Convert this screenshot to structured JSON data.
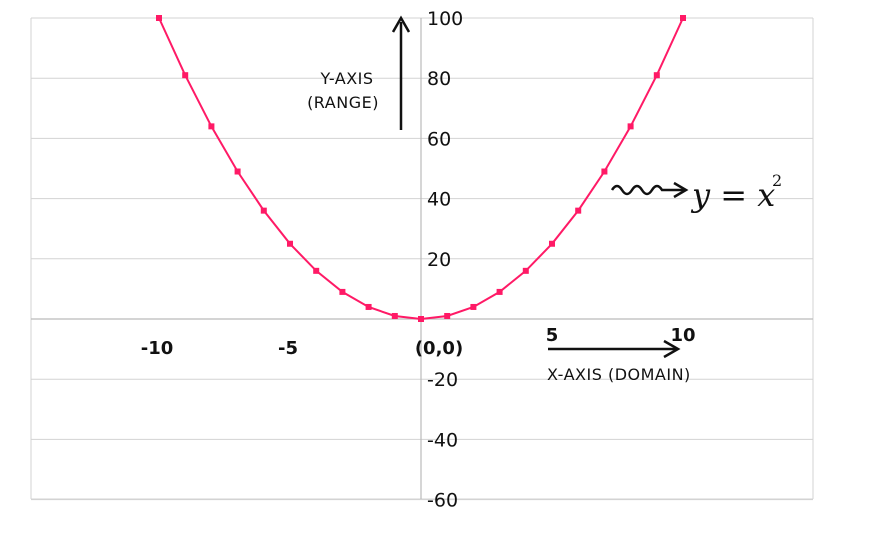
{
  "chart_data": {
    "type": "line",
    "series": [
      {
        "x": [
          -10,
          -9,
          -8,
          -7,
          -6,
          -5,
          -4,
          -3,
          -2,
          -1,
          0,
          1,
          2,
          3,
          4,
          5,
          6,
          7,
          8,
          9,
          10
        ],
        "y": [
          100,
          81,
          64,
          49,
          36,
          25,
          16,
          9,
          4,
          1,
          0,
          1,
          4,
          9,
          16,
          25,
          36,
          49,
          64,
          81,
          100
        ]
      }
    ],
    "x_tick_labels": [
      {
        "x": -10,
        "text": "-10"
      },
      {
        "x": -5,
        "text": "-5"
      },
      {
        "x": 0,
        "text": "(0,0)"
      },
      {
        "x": 5,
        "text": "5"
      },
      {
        "x": 10,
        "text": "10"
      }
    ],
    "y_tick_labels": [
      {
        "y": 100,
        "text": "100"
      },
      {
        "y": 80,
        "text": "80"
      },
      {
        "y": 60,
        "text": "60"
      },
      {
        "y": 40,
        "text": "40"
      },
      {
        "y": 20,
        "text": "20"
      },
      {
        "y": -20,
        "text": "-20"
      },
      {
        "y": -40,
        "text": "-40"
      },
      {
        "y": -60,
        "text": "-60"
      }
    ],
    "xlabel": "X-AXIS (DOMAIN)",
    "ylabel_lines": [
      "Y-AXIS",
      "(RANGE)"
    ],
    "annotation": {
      "text": "y = x",
      "superscript": "2"
    },
    "xlim": [
      -15,
      15
    ],
    "ylim": [
      -60,
      100
    ],
    "grid": "horizontal",
    "line_color": "#ff1a66",
    "grid_color": "#d3d3d3",
    "axis_color": "#111111"
  }
}
